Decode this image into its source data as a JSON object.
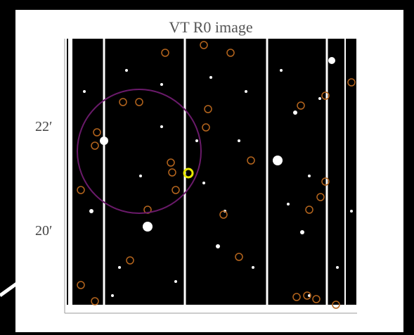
{
  "figure": {
    "title": "VT R0 image",
    "y_labels": [
      "22′",
      "20′"
    ]
  }
}
